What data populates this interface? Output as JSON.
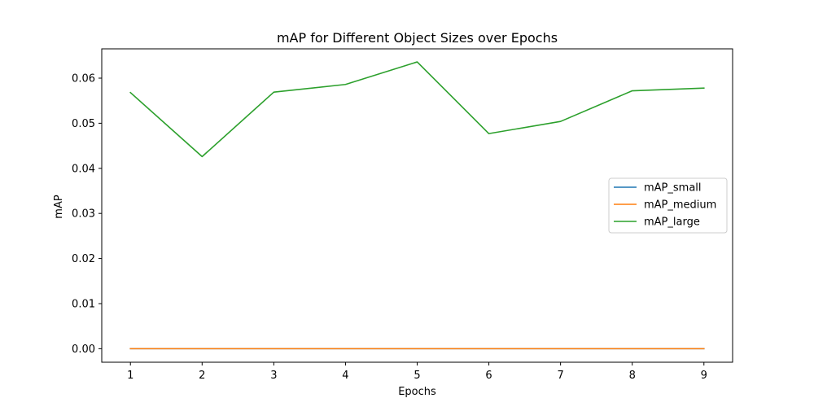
{
  "chart_data": {
    "type": "line",
    "title": "mAP for Different Object Sizes over Epochs",
    "xlabel": "Epochs",
    "ylabel": "mAP",
    "x": [
      1,
      2,
      3,
      4,
      5,
      6,
      7,
      8,
      9
    ],
    "xlim": [
      0.6,
      9.4
    ],
    "ylim": [
      -0.003,
      0.0665
    ],
    "xticks": [
      "1",
      "2",
      "3",
      "4",
      "5",
      "6",
      "7",
      "8",
      "9"
    ],
    "yticks": [
      "0.00",
      "0.01",
      "0.02",
      "0.03",
      "0.04",
      "0.05",
      "0.06"
    ],
    "grid": false,
    "legend_position": "center-right",
    "series": [
      {
        "name": "mAP_small",
        "color": "#1f77b4",
        "values": [
          0,
          0,
          0,
          0,
          0,
          0,
          0,
          0,
          0
        ]
      },
      {
        "name": "mAP_medium",
        "color": "#ff7f0e",
        "values": [
          0,
          0,
          0,
          0,
          0,
          0,
          0,
          0,
          0
        ]
      },
      {
        "name": "mAP_large",
        "color": "#2ca02c",
        "values": [
          0.0568,
          0.0426,
          0.0569,
          0.0586,
          0.0636,
          0.0477,
          0.0504,
          0.0572,
          0.0578
        ]
      }
    ]
  }
}
